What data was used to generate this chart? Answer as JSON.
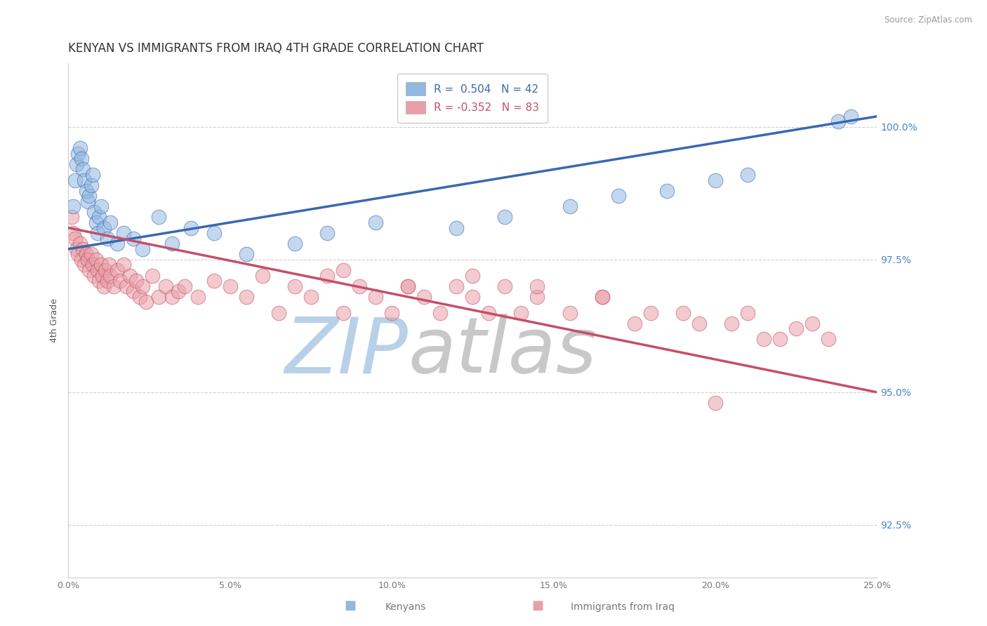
{
  "title": "KENYAN VS IMMIGRANTS FROM IRAQ 4TH GRADE CORRELATION CHART",
  "source_text": "Source: ZipAtlas.com",
  "ylabel": "4th Grade",
  "xlim": [
    0.0,
    25.0
  ],
  "ylim": [
    91.5,
    101.2
  ],
  "yticks": [
    92.5,
    95.0,
    97.5,
    100.0
  ],
  "xticks": [
    0.0,
    5.0,
    10.0,
    15.0,
    20.0,
    25.0
  ],
  "xtick_labels": [
    "0.0%",
    "5.0%",
    "10.0%",
    "15.0%",
    "20.0%",
    "25.0%"
  ],
  "ytick_labels": [
    "92.5%",
    "95.0%",
    "97.5%",
    "100.0%"
  ],
  "legend_R_blue": "0.504",
  "legend_N_blue": "42",
  "legend_R_pink": "-0.352",
  "legend_N_pink": "83",
  "blue_color": "#92b8e0",
  "pink_color": "#e8a0a8",
  "blue_line_color": "#3a68b0",
  "pink_line_color": "#c45068",
  "watermark_zip_color": "#b8d0e8",
  "watermark_atlas_color": "#c8c8c8",
  "background_color": "#ffffff",
  "grid_color": "#d0d0d0",
  "axis_color": "#cccccc",
  "title_fontsize": 12,
  "label_fontsize": 9,
  "tick_fontsize": 9,
  "ytick_color": "#4a86c8",
  "blue_scatter_x": [
    0.15,
    0.2,
    0.25,
    0.3,
    0.35,
    0.4,
    0.45,
    0.5,
    0.55,
    0.6,
    0.65,
    0.7,
    0.75,
    0.8,
    0.85,
    0.9,
    0.95,
    1.0,
    1.1,
    1.2,
    1.3,
    1.5,
    1.7,
    2.0,
    2.3,
    2.8,
    3.2,
    3.8,
    4.5,
    5.5,
    7.0,
    8.0,
    9.5,
    12.0,
    13.5,
    15.5,
    17.0,
    18.5,
    20.0,
    21.0,
    23.8,
    24.2
  ],
  "blue_scatter_y": [
    98.5,
    99.0,
    99.3,
    99.5,
    99.6,
    99.4,
    99.2,
    99.0,
    98.8,
    98.6,
    98.7,
    98.9,
    99.1,
    98.4,
    98.2,
    98.0,
    98.3,
    98.5,
    98.1,
    97.9,
    98.2,
    97.8,
    98.0,
    97.9,
    97.7,
    98.3,
    97.8,
    98.1,
    98.0,
    97.6,
    97.8,
    98.0,
    98.2,
    98.1,
    98.3,
    98.5,
    98.7,
    98.8,
    99.0,
    99.1,
    100.1,
    100.2
  ],
  "pink_scatter_x": [
    0.1,
    0.15,
    0.2,
    0.25,
    0.3,
    0.35,
    0.4,
    0.45,
    0.5,
    0.55,
    0.6,
    0.65,
    0.7,
    0.75,
    0.8,
    0.85,
    0.9,
    0.95,
    1.0,
    1.05,
    1.1,
    1.15,
    1.2,
    1.25,
    1.3,
    1.4,
    1.5,
    1.6,
    1.7,
    1.8,
    1.9,
    2.0,
    2.1,
    2.2,
    2.3,
    2.4,
    2.6,
    2.8,
    3.0,
    3.2,
    3.4,
    3.6,
    4.0,
    4.5,
    5.0,
    5.5,
    6.0,
    6.5,
    7.0,
    7.5,
    8.0,
    8.5,
    9.0,
    9.5,
    10.0,
    10.5,
    11.0,
    11.5,
    12.0,
    12.5,
    13.0,
    13.5,
    14.0,
    14.5,
    15.5,
    16.5,
    17.5,
    19.0,
    20.5,
    21.5,
    22.5,
    23.5,
    8.5,
    10.5,
    12.5,
    14.5,
    16.5,
    18.0,
    19.5,
    21.0,
    22.0,
    23.0,
    20.0
  ],
  "pink_scatter_y": [
    98.3,
    98.0,
    97.9,
    97.7,
    97.6,
    97.8,
    97.5,
    97.7,
    97.4,
    97.6,
    97.5,
    97.3,
    97.6,
    97.4,
    97.2,
    97.5,
    97.3,
    97.1,
    97.4,
    97.2,
    97.0,
    97.3,
    97.1,
    97.4,
    97.2,
    97.0,
    97.3,
    97.1,
    97.4,
    97.0,
    97.2,
    96.9,
    97.1,
    96.8,
    97.0,
    96.7,
    97.2,
    96.8,
    97.0,
    96.8,
    96.9,
    97.0,
    96.8,
    97.1,
    97.0,
    96.8,
    97.2,
    96.5,
    97.0,
    96.8,
    97.2,
    96.5,
    97.0,
    96.8,
    96.5,
    97.0,
    96.8,
    96.5,
    97.0,
    96.8,
    96.5,
    97.0,
    96.5,
    96.8,
    96.5,
    96.8,
    96.3,
    96.5,
    96.3,
    96.0,
    96.2,
    96.0,
    97.3,
    97.0,
    97.2,
    97.0,
    96.8,
    96.5,
    96.3,
    96.5,
    96.0,
    96.3,
    94.8
  ],
  "blue_trend_x": [
    0.0,
    25.0
  ],
  "blue_trend_y": [
    97.7,
    100.2
  ],
  "pink_trend_x": [
    0.0,
    25.0
  ],
  "pink_trend_y": [
    98.1,
    95.0
  ]
}
